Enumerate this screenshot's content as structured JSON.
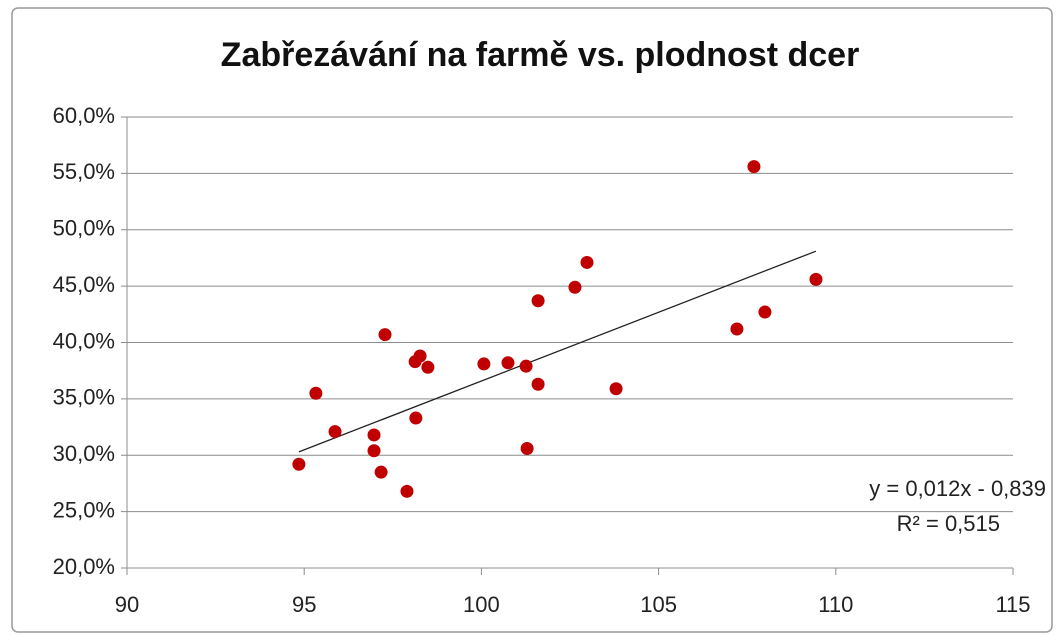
{
  "chart_data": {
    "type": "scatter",
    "title": "Zabřezávání na farmě vs. plodnost dcer",
    "series": [
      {
        "color": "#c00000",
        "x": [
          94.85,
          95.33,
          95.87,
          96.97,
          96.97,
          97.17,
          97.28,
          97.9,
          98.13,
          98.27,
          98.15,
          98.49,
          100.07,
          100.75,
          101.26,
          101.29,
          101.6,
          101.6,
          102.64,
          102.98,
          103.8,
          107.21,
          107.69,
          108.0,
          109.44
        ],
        "values": [
          29.2,
          35.5,
          32.1,
          31.8,
          30.4,
          28.5,
          40.7,
          26.8,
          38.3,
          38.8,
          33.3,
          37.8,
          38.1,
          38.2,
          37.9,
          30.6,
          36.3,
          43.7,
          44.9,
          47.1,
          35.9,
          41.2,
          55.6,
          42.7,
          45.6
        ]
      }
    ],
    "trendline": {
      "color": "#222222",
      "x": [
        94.85,
        109.44
      ],
      "values": [
        30.3,
        48.1
      ]
    },
    "annotations": [
      "y = 0,012x - 0,839",
      "R² = 0,515"
    ],
    "xlim": [
      90,
      115
    ],
    "xticks": [
      90,
      95,
      100,
      105,
      110,
      115
    ],
    "ylim": [
      20,
      60
    ],
    "yticks": [
      {
        "value": 20,
        "label": "20,0%"
      },
      {
        "value": 25,
        "label": "25,0%"
      },
      {
        "value": 30,
        "label": "30,0%"
      },
      {
        "value": 35,
        "label": "35,0%"
      },
      {
        "value": 40,
        "label": "40,0%"
      },
      {
        "value": 45,
        "label": "45,0%"
      },
      {
        "value": 50,
        "label": "50,0%"
      },
      {
        "value": 55,
        "label": "55,0%"
      },
      {
        "value": 60,
        "label": "60,0%"
      }
    ],
    "grid": true
  }
}
